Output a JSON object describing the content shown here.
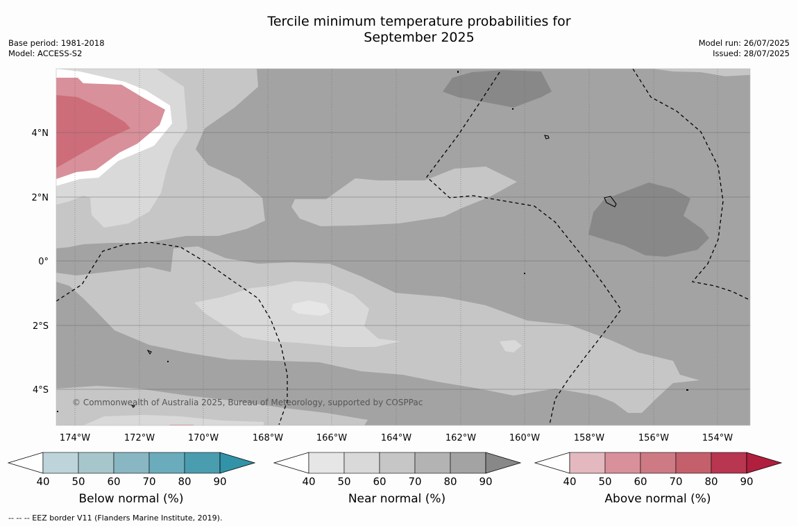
{
  "title": {
    "line1": "Tercile minimum temperature probabilities for",
    "line2": "September 2025"
  },
  "meta_left": {
    "base_period": "Base period: 1981-2018",
    "model": "Model: ACCESS-S2"
  },
  "meta_right": {
    "model_run": "Model run: 26/07/2025",
    "issued": "Issued: 28/07/2025"
  },
  "map": {
    "lat_labels": [
      "4°N",
      "2°N",
      "0°",
      "2°S",
      "4°S"
    ],
    "lon_labels": [
      "174°W",
      "172°W",
      "170°W",
      "168°W",
      "166°W",
      "164°W",
      "162°W",
      "160°W",
      "158°W",
      "156°W",
      "154°W"
    ],
    "copyright": "© Commonwealth of Australia 2025, Bureau of Meteorology, supported by COSPPac",
    "colors": {
      "near_40": "#e6e6e6",
      "near_50": "#d9d9d9",
      "near_60": "#c6c6c6",
      "near_70": "#a3a3a3",
      "near_80": "#888888",
      "above_60": "#d8909a",
      "above_70": "#cd6d79"
    }
  },
  "colorbars": [
    {
      "label": "Below normal (%)",
      "ticks": [
        "40",
        "50",
        "60",
        "70",
        "80",
        "90"
      ],
      "colors": [
        "#bdd4db",
        "#a6c6cc",
        "#89b6c3",
        "#6aacbb",
        "#4a9daf",
        "#3292a8"
      ]
    },
    {
      "label": "Near normal (%)",
      "ticks": [
        "40",
        "50",
        "60",
        "70",
        "80",
        "90"
      ],
      "colors": [
        "#e6e6e6",
        "#d9d9d9",
        "#c6c6c6",
        "#b3b3b3",
        "#a3a3a3",
        "#888888"
      ]
    },
    {
      "label": "Above normal (%)",
      "ticks": [
        "40",
        "50",
        "60",
        "70",
        "80",
        "90"
      ],
      "colors": [
        "#e3b8bf",
        "#d8909a",
        "#cd7a84",
        "#c4606c",
        "#b83650",
        "#b01f3e"
      ]
    }
  ],
  "footnote": "-- -- -- EEZ border V11 (Flanders Marine Institute, 2019)."
}
